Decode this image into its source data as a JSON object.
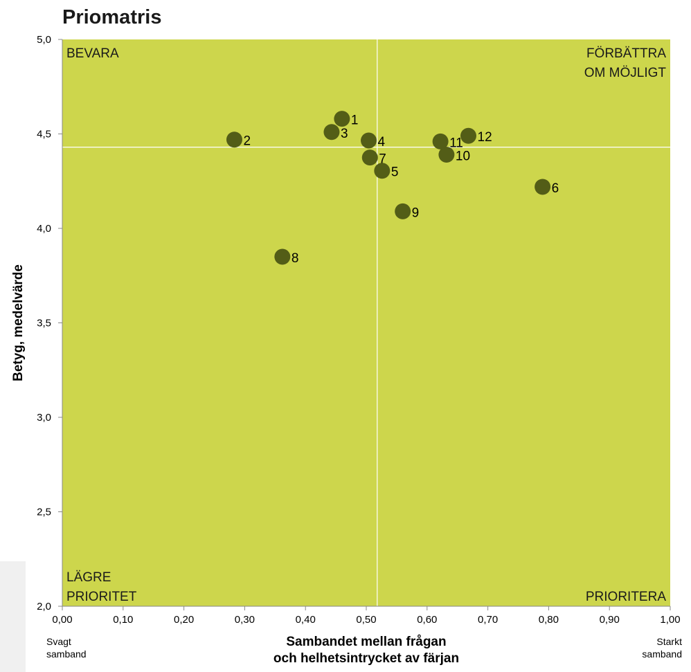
{
  "chart_data": {
    "type": "scatter",
    "title": "Priomatris",
    "xlabel_lines": [
      "Sambandet mellan frågan",
      "och helhetsintrycket av färjan"
    ],
    "ylabel": "Betyg, medelvärde",
    "xlim": [
      0,
      1
    ],
    "ylim": [
      2,
      5
    ],
    "x_tick_labels": [
      "0,00",
      "0,10",
      "0,20",
      "0,30",
      "0,40",
      "0,50",
      "0,60",
      "0,70",
      "0,80",
      "0,90",
      "1,00"
    ],
    "y_tick_labels": [
      "2,0",
      "2,5",
      "3,0",
      "3,5",
      "4,0",
      "4,5",
      "5,0"
    ],
    "x_ticks": [
      0,
      0.1,
      0.2,
      0.3,
      0.4,
      0.5,
      0.6,
      0.7,
      0.8,
      0.9,
      1.0
    ],
    "y_ticks": [
      2.0,
      2.5,
      3.0,
      3.5,
      4.0,
      4.5,
      5.0
    ],
    "reference_x": 0.518,
    "reference_y": 4.43,
    "grid": false,
    "plot_background": "#cdd64c",
    "marker_color": "#535d17",
    "reference_line_color": "#ffffff",
    "points": [
      {
        "label": "1",
        "x": 0.46,
        "y": 4.58
      },
      {
        "label": "2",
        "x": 0.283,
        "y": 4.47
      },
      {
        "label": "3",
        "x": 0.443,
        "y": 4.51
      },
      {
        "label": "4",
        "x": 0.504,
        "y": 4.465
      },
      {
        "label": "5",
        "x": 0.526,
        "y": 4.305
      },
      {
        "label": "6",
        "x": 0.79,
        "y": 4.22
      },
      {
        "label": "7",
        "x": 0.506,
        "y": 4.375
      },
      {
        "label": "8",
        "x": 0.362,
        "y": 3.85
      },
      {
        "label": "9",
        "x": 0.56,
        "y": 4.09
      },
      {
        "label": "10",
        "x": 0.632,
        "y": 4.39
      },
      {
        "label": "11",
        "x": 0.622,
        "y": 4.46
      },
      {
        "label": "12",
        "x": 0.668,
        "y": 4.49
      }
    ],
    "quadrant_labels": {
      "top_left": [
        "BEVARA"
      ],
      "top_right": [
        "FÖRBÄTTRA",
        "OM MÖJLIGT"
      ],
      "bottom_left": [
        "LÄGRE",
        "PRIORITET"
      ],
      "bottom_right": [
        "PRIORITERA"
      ]
    },
    "x_left_note": [
      "Svagt",
      "samband"
    ],
    "x_right_note": [
      "Starkt",
      "samband"
    ]
  }
}
